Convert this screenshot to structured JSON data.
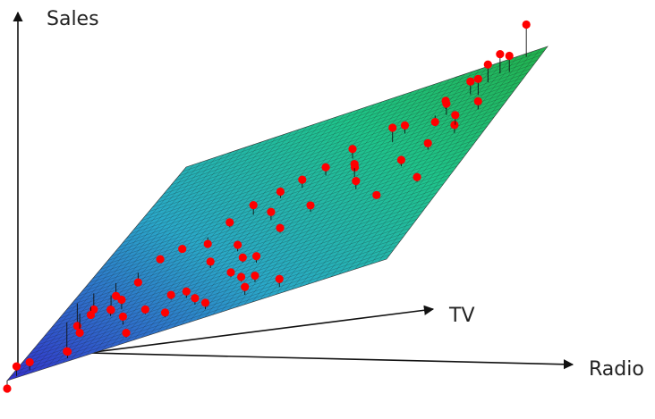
{
  "chart_data": {
    "type": "scatter",
    "subtype": "3d-scatter-with-regression-plane",
    "title": "",
    "axes": {
      "x": "TV",
      "y": "Radio",
      "z": "Sales"
    },
    "plane": {
      "colormap": [
        "#3333cc",
        "#2aa8c8",
        "#1fc38a",
        "#22b14c"
      ],
      "mesh": true,
      "note": ""
    },
    "point_color": "#ff0000",
    "points": [
      {
        "tv": 0.98,
        "radio": 0.95,
        "sales": 1.0,
        "residual": 0.2
      },
      {
        "tv": 0.93,
        "radio": 0.9,
        "sales": 0.93,
        "residual": 0.12
      },
      {
        "tv": 0.92,
        "radio": 0.93,
        "sales": 0.91,
        "residual": 0.1
      },
      {
        "tv": 0.9,
        "radio": 0.88,
        "sales": 0.88,
        "residual": 0.11
      },
      {
        "tv": 0.86,
        "radio": 0.85,
        "sales": 0.85,
        "residual": 0.08
      },
      {
        "tv": 0.84,
        "radio": 0.88,
        "sales": 0.84,
        "residual": 0.1
      },
      {
        "tv": 0.82,
        "radio": 0.8,
        "sales": 0.8,
        "residual": 0.05
      },
      {
        "tv": 0.8,
        "radio": 0.78,
        "sales": 0.78,
        "residual": -0.04
      },
      {
        "tv": 0.78,
        "radio": 0.82,
        "sales": 0.78,
        "residual": 0.07
      },
      {
        "tv": 0.75,
        "radio": 0.72,
        "sales": 0.73,
        "residual": 0.05
      },
      {
        "tv": 0.72,
        "radio": 0.7,
        "sales": 0.71,
        "residual": 0.09
      },
      {
        "tv": 0.7,
        "radio": 0.6,
        "sales": 0.66,
        "residual": 0.06
      },
      {
        "tv": 0.67,
        "radio": 0.62,
        "sales": 0.63,
        "residual": -0.03
      },
      {
        "tv": 0.65,
        "radio": 0.55,
        "sales": 0.6,
        "residual": 0.05
      },
      {
        "tv": 0.62,
        "radio": 0.5,
        "sales": 0.56,
        "residual": 0.05
      },
      {
        "tv": 0.6,
        "radio": 0.45,
        "sales": 0.53,
        "residual": 0.04
      },
      {
        "tv": 0.58,
        "radio": 0.66,
        "sales": 0.61,
        "residual": 0.08
      },
      {
        "tv": 0.55,
        "radio": 0.4,
        "sales": 0.47,
        "residual": 0.06
      },
      {
        "tv": 0.52,
        "radio": 0.35,
        "sales": 0.43,
        "residual": 0.03
      },
      {
        "tv": 0.5,
        "radio": 0.3,
        "sales": 0.4,
        "residual": -0.04
      },
      {
        "tv": 0.48,
        "radio": 0.48,
        "sales": 0.48,
        "residual": 0.05
      },
      {
        "tv": 0.46,
        "radio": 0.25,
        "sales": 0.35,
        "residual": 0.02
      },
      {
        "tv": 0.44,
        "radio": 0.2,
        "sales": 0.31,
        "residual": 0.02
      },
      {
        "tv": 0.42,
        "radio": 0.15,
        "sales": 0.27,
        "residual": -0.06
      },
      {
        "tv": 0.4,
        "radio": 0.1,
        "sales": 0.23,
        "residual": -0.08
      },
      {
        "tv": 0.38,
        "radio": 0.05,
        "sales": 0.19,
        "residual": -0.1
      },
      {
        "tv": 0.35,
        "radio": 0.02,
        "sales": 0.15,
        "residual": -0.14
      },
      {
        "tv": 0.33,
        "radio": 0.12,
        "sales": 0.2,
        "residual": -0.09
      },
      {
        "tv": 0.3,
        "radio": 0.08,
        "sales": 0.17,
        "residual": -0.05
      },
      {
        "tv": 0.28,
        "radio": 0.06,
        "sales": 0.15,
        "residual": -0.12
      },
      {
        "tv": 0.25,
        "radio": 0.04,
        "sales": 0.13,
        "residual": -0.18
      },
      {
        "tv": 0.22,
        "radio": 0.2,
        "sales": 0.2,
        "residual": 0.06
      },
      {
        "tv": 0.2,
        "radio": 0.18,
        "sales": 0.18,
        "residual": 0.04
      },
      {
        "tv": 0.18,
        "radio": 0.35,
        "sales": 0.27,
        "residual": 0.03
      },
      {
        "tv": 0.16,
        "radio": 0.4,
        "sales": 0.29,
        "residual": 0.04
      },
      {
        "tv": 0.14,
        "radio": 0.3,
        "sales": 0.22,
        "residual": 0.03
      },
      {
        "tv": 0.12,
        "radio": 0.25,
        "sales": 0.19,
        "residual": 0.05
      },
      {
        "tv": 0.1,
        "radio": 0.45,
        "sales": 0.28,
        "residual": 0.04
      },
      {
        "tv": 0.08,
        "radio": 0.38,
        "sales": 0.23,
        "residual": 0.03
      },
      {
        "tv": 0.06,
        "radio": 0.6,
        "sales": 0.33,
        "residual": 0.05
      },
      {
        "tv": 0.05,
        "radio": 0.5,
        "sales": 0.28,
        "residual": 0.04
      },
      {
        "tv": 0.04,
        "radio": 0.7,
        "sales": 0.37,
        "residual": 0.05
      },
      {
        "tv": 0.03,
        "radio": 0.3,
        "sales": 0.16,
        "residual": 0.03
      },
      {
        "tv": 0.02,
        "radio": 0.15,
        "sales": 0.09,
        "residual": 0.04
      },
      {
        "tv": 0.02,
        "radio": 0.05,
        "sales": 0.05,
        "residual": 0.05
      },
      {
        "tv": 0.01,
        "radio": 0.02,
        "sales": 0.02,
        "residual": 0.06
      },
      {
        "tv": 0.0,
        "radio": 0.0,
        "sales": 0.0,
        "residual": -0.05
      },
      {
        "tv": 0.45,
        "radio": 0.6,
        "sales": 0.52,
        "residual": 0.04
      },
      {
        "tv": 0.5,
        "radio": 0.7,
        "sales": 0.6,
        "residual": 0.05
      },
      {
        "tv": 0.55,
        "radio": 0.8,
        "sales": 0.68,
        "residual": 0.04
      },
      {
        "tv": 0.6,
        "radio": 0.85,
        "sales": 0.72,
        "residual": 0.04
      },
      {
        "tv": 0.65,
        "radio": 0.9,
        "sales": 0.78,
        "residual": 0.05
      },
      {
        "tv": 0.7,
        "radio": 0.88,
        "sales": 0.79,
        "residual": 0.06
      },
      {
        "tv": 0.75,
        "radio": 0.92,
        "sales": 0.84,
        "residual": 0.05
      },
      {
        "tv": 0.38,
        "radio": 0.55,
        "sales": 0.46,
        "residual": 0.03
      },
      {
        "tv": 0.35,
        "radio": 0.45,
        "sales": 0.4,
        "residual": 0.04
      },
      {
        "tv": 0.3,
        "radio": 0.4,
        "sales": 0.35,
        "residual": 0.04
      },
      {
        "tv": 0.27,
        "radio": 0.5,
        "sales": 0.39,
        "residual": 0.03
      },
      {
        "tv": 0.24,
        "radio": 0.55,
        "sales": 0.4,
        "residual": 0.04
      },
      {
        "tv": 0.2,
        "radio": 0.5,
        "sales": 0.35,
        "residual": 0.03
      },
      {
        "tv": 0.15,
        "radio": 0.55,
        "sales": 0.35,
        "residual": 0.03
      },
      {
        "tv": 0.12,
        "radio": 0.6,
        "sales": 0.36,
        "residual": 0.04
      },
      {
        "tv": 0.4,
        "radio": 0.8,
        "sales": 0.6,
        "residual": 0.02
      },
      {
        "tv": 0.42,
        "radio": 0.9,
        "sales": 0.66,
        "residual": 0.03
      }
    ]
  }
}
